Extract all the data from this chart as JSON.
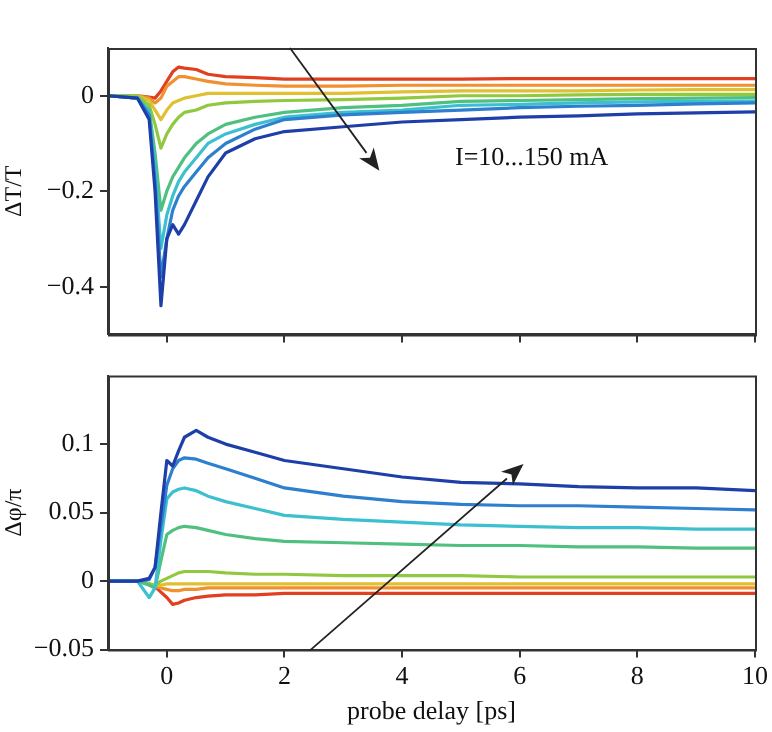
{
  "chart_data": [
    {
      "type": "line",
      "ylabel": "ΔT/T",
      "annotations": [
        "I=10...150 mA"
      ],
      "marker": "none",
      "line_style": "solid",
      "tick_labels": "y",
      "xlim": [
        -1,
        10
      ],
      "xticks": [
        0,
        2,
        4,
        6,
        8,
        10
      ],
      "ylim": [
        -0.5,
        0.1
      ],
      "yticks": [
        -0.4,
        -0.2,
        0
      ],
      "x": [
        -1,
        -0.5,
        -0.3,
        -0.2,
        -0.1,
        0,
        0.1,
        0.2,
        0.3,
        0.5,
        0.7,
        1,
        1.5,
        2,
        3,
        4,
        5,
        6,
        7,
        8,
        9,
        10
      ],
      "series": [
        {
          "color": "#1f3fa8",
          "values": [
            0,
            -0.005,
            -0.05,
            -0.2,
            -0.44,
            -0.3,
            -0.27,
            -0.29,
            -0.27,
            -0.22,
            -0.17,
            -0.12,
            -0.09,
            -0.075,
            -0.065,
            -0.055,
            -0.05,
            -0.045,
            -0.042,
            -0.038,
            -0.036,
            -0.034
          ]
        },
        {
          "color": "#2f7fd0",
          "values": [
            0,
            -0.005,
            -0.04,
            -0.18,
            -0.38,
            -0.3,
            -0.24,
            -0.21,
            -0.19,
            -0.16,
            -0.13,
            -0.1,
            -0.07,
            -0.05,
            -0.04,
            -0.035,
            -0.03,
            -0.025,
            -0.022,
            -0.02,
            -0.017,
            -0.015
          ]
        },
        {
          "color": "#3cc0d0",
          "values": [
            0,
            -0.005,
            -0.035,
            -0.15,
            -0.32,
            -0.25,
            -0.21,
            -0.18,
            -0.16,
            -0.13,
            -0.1,
            -0.08,
            -0.06,
            -0.045,
            -0.035,
            -0.03,
            -0.02,
            -0.018,
            -0.015,
            -0.013,
            -0.012,
            -0.011
          ]
        },
        {
          "color": "#50c080",
          "values": [
            0,
            -0.005,
            -0.03,
            -0.12,
            -0.24,
            -0.2,
            -0.17,
            -0.15,
            -0.13,
            -0.1,
            -0.08,
            -0.06,
            -0.045,
            -0.035,
            -0.025,
            -0.02,
            -0.012,
            -0.01,
            -0.008,
            -0.006,
            -0.005,
            -0.004
          ]
        },
        {
          "color": "#90c840",
          "values": [
            0,
            0,
            -0.02,
            -0.06,
            -0.11,
            -0.08,
            -0.06,
            -0.045,
            -0.035,
            -0.03,
            -0.02,
            -0.015,
            -0.012,
            -0.01,
            -0.008,
            -0.005,
            0,
            0,
            0.002,
            0.003,
            0.003,
            0.003
          ]
        },
        {
          "color": "#e0c030",
          "values": [
            0,
            0,
            -0.01,
            -0.03,
            -0.05,
            -0.03,
            -0.015,
            -0.01,
            -0.005,
            0,
            0.005,
            0.005,
            0.005,
            0.005,
            0.005,
            0.008,
            0.01,
            0.01,
            0.01,
            0.012,
            0.013,
            0.013
          ]
        },
        {
          "color": "#f09030",
          "values": [
            0,
            0,
            -0.005,
            -0.015,
            -0.005,
            0.02,
            0.03,
            0.04,
            0.04,
            0.035,
            0.03,
            0.025,
            0.022,
            0.02,
            0.02,
            0.022,
            0.022,
            0.022,
            0.022,
            0.022,
            0.022,
            0.022
          ]
        },
        {
          "color": "#e04020",
          "values": [
            0,
            0,
            -0.003,
            -0.005,
            0.01,
            0.03,
            0.05,
            0.06,
            0.058,
            0.055,
            0.045,
            0.04,
            0.038,
            0.035,
            0.035,
            0.035,
            0.035,
            0.036,
            0.036,
            0.036,
            0.036,
            0.036
          ]
        }
      ]
    },
    {
      "type": "line",
      "ylabel": "Δφ/π",
      "xlabel": "probe delay [ps]",
      "marker": "none",
      "line_style": "solid",
      "xlim": [
        -1,
        10
      ],
      "xticks": [
        0,
        2,
        4,
        6,
        8,
        10
      ],
      "ylim": [
        -0.05,
        0.15
      ],
      "yticks": [
        -0.05,
        0,
        0.05,
        0.1
      ],
      "x": [
        -1,
        -0.5,
        -0.3,
        -0.2,
        -0.1,
        0,
        0.1,
        0.2,
        0.3,
        0.5,
        0.7,
        1,
        1.5,
        2,
        3,
        4,
        5,
        6,
        7,
        8,
        9,
        10
      ],
      "series": [
        {
          "color": "#1f3fa8",
          "values": [
            0,
            0,
            0.002,
            0.01,
            0.05,
            0.088,
            0.084,
            0.095,
            0.105,
            0.11,
            0.105,
            0.1,
            0.094,
            0.088,
            0.082,
            0.076,
            0.072,
            0.071,
            0.069,
            0.068,
            0.068,
            0.066
          ]
        },
        {
          "color": "#2f7fd0",
          "values": [
            0,
            0,
            0.001,
            0.01,
            0.04,
            0.07,
            0.082,
            0.088,
            0.09,
            0.089,
            0.086,
            0.082,
            0.075,
            0.068,
            0.062,
            0.058,
            0.056,
            0.055,
            0.055,
            0.054,
            0.053,
            0.052
          ]
        },
        {
          "color": "#3cc0d0",
          "values": [
            0,
            0,
            -0.012,
            -0.005,
            0.03,
            0.06,
            0.065,
            0.067,
            0.068,
            0.066,
            0.062,
            0.058,
            0.053,
            0.048,
            0.045,
            0.043,
            0.041,
            0.04,
            0.039,
            0.039,
            0.038,
            0.038
          ]
        },
        {
          "color": "#50c080",
          "values": [
            0,
            0,
            -0.003,
            -0.005,
            0.015,
            0.034,
            0.037,
            0.039,
            0.04,
            0.039,
            0.037,
            0.034,
            0.031,
            0.029,
            0.028,
            0.027,
            0.026,
            0.026,
            0.025,
            0.025,
            0.024,
            0.024
          ]
        },
        {
          "color": "#90c840",
          "values": [
            0,
            0,
            -0.002,
            -0.003,
            0,
            0.002,
            0.004,
            0.006,
            0.007,
            0.007,
            0.007,
            0.006,
            0.005,
            0.005,
            0.004,
            0.004,
            0.004,
            0.003,
            0.003,
            0.003,
            0.003,
            0.003
          ]
        },
        {
          "color": "#e0c030",
          "values": [
            0,
            0,
            -0.002,
            -0.003,
            -0.003,
            -0.002,
            -0.002,
            -0.002,
            -0.002,
            -0.002,
            -0.002,
            -0.002,
            -0.002,
            -0.002,
            -0.002,
            -0.002,
            -0.002,
            -0.002,
            -0.002,
            -0.002,
            -0.002,
            -0.002
          ]
        },
        {
          "color": "#f09030",
          "values": [
            0,
            0,
            -0.002,
            -0.004,
            -0.005,
            -0.006,
            -0.007,
            -0.007,
            -0.006,
            -0.006,
            -0.005,
            -0.005,
            -0.005,
            -0.005,
            -0.005,
            -0.005,
            -0.005,
            -0.005,
            -0.005,
            -0.005,
            -0.005,
            -0.005
          ]
        },
        {
          "color": "#e04020",
          "values": [
            0,
            0,
            -0.002,
            -0.004,
            -0.008,
            -0.012,
            -0.017,
            -0.016,
            -0.014,
            -0.012,
            -0.011,
            -0.01,
            -0.01,
            -0.009,
            -0.009,
            -0.009,
            -0.009,
            -0.009,
            -0.009,
            -0.009,
            -0.009,
            -0.009
          ]
        }
      ]
    }
  ]
}
